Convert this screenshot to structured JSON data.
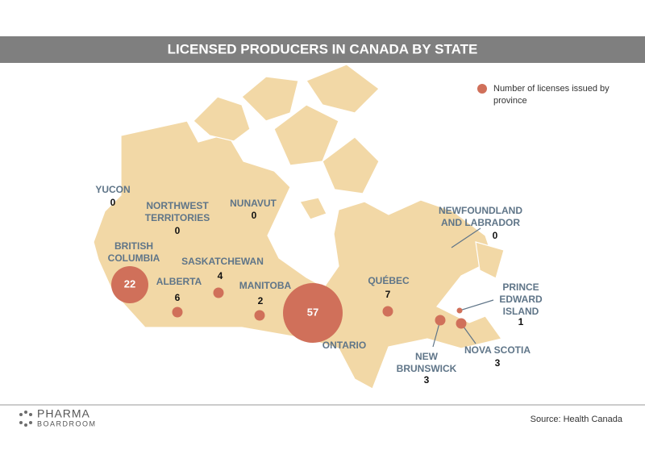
{
  "title": "LICENSED PRODUCERS IN CANADA BY STATE",
  "legend": [
    "Number of licenses issued by",
    "province"
  ],
  "regions": [
    {
      "name": [
        "YUCON"
      ],
      "value": 0
    },
    {
      "name": [
        "NORTHWEST",
        "TERRITORIES"
      ],
      "value": 0
    },
    {
      "name": [
        "NUNAVUT"
      ],
      "value": 0
    },
    {
      "name": [
        "BRITISH",
        "COLUMBIA"
      ],
      "value": 22
    },
    {
      "name": [
        "ALBERTA"
      ],
      "value": 6
    },
    {
      "name": [
        "SASKATCHEWAN"
      ],
      "value": 4
    },
    {
      "name": [
        "MANITOBA"
      ],
      "value": 2
    },
    {
      "name": [
        "ONTARIO"
      ],
      "value": 57
    },
    {
      "name": [
        "QUÉBEC"
      ],
      "value": 7
    },
    {
      "name": [
        "NEWFOUNDLAND",
        "AND LABRADOR"
      ],
      "value": 0
    },
    {
      "name": [
        "PRINCE",
        "EDWARD",
        "ISLAND"
      ],
      "value": 1
    },
    {
      "name": [
        "NEW",
        "BRUNSWICK"
      ],
      "value": 3
    },
    {
      "name": [
        "NOVA SCOTIA"
      ],
      "value": 3
    }
  ],
  "logo": [
    "PHARMA",
    "BOARDROOM"
  ],
  "source": "Source: Health Canada"
}
